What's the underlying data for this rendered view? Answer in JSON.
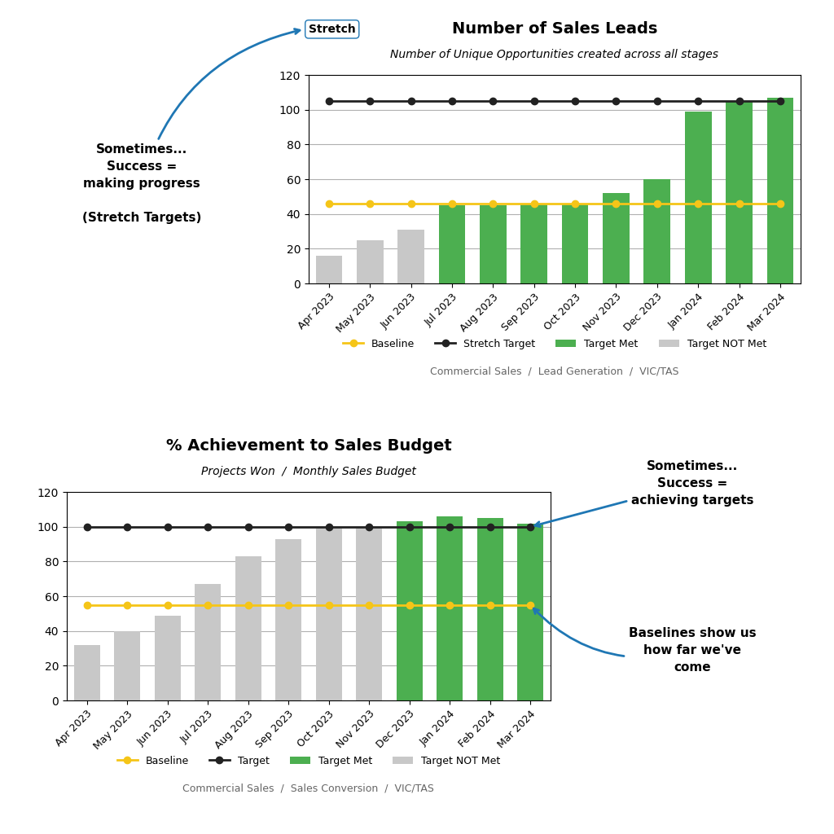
{
  "chart_data": [
    {
      "type": "bar",
      "title": "Number of Sales Leads",
      "subtitle": "Number of Unique Opportunities created across all stages",
      "footer": "Commercial Sales  /  Lead Generation  /  VIC/TAS",
      "badge": "Stretch",
      "annotations": [
        "Sometimes...\nSuccess =\nmaking progress\n\n(Stretch Targets)"
      ],
      "categories": [
        "Apr 2023",
        "May 2023",
        "Jun 2023",
        "Jul 2023",
        "Aug 2023",
        "Sep 2023",
        "Oct 2023",
        "Nov 2023",
        "Dec 2023",
        "Jan 2024",
        "Feb 2024",
        "Mar 2024"
      ],
      "series": [
        {
          "name": "Baseline",
          "type": "line",
          "color": "#f5c518",
          "marker": "o",
          "line_style": "solid",
          "values": [
            46,
            46,
            46,
            46,
            46,
            46,
            46,
            46,
            46,
            46,
            46,
            46
          ]
        },
        {
          "name": "Stretch Target",
          "type": "line",
          "color": "#222222",
          "marker": "o",
          "line_style": "solid",
          "values": [
            105,
            105,
            105,
            105,
            105,
            105,
            105,
            105,
            105,
            105,
            105,
            105
          ]
        },
        {
          "name": "Target Met",
          "type": "bar",
          "color": "#4caf50",
          "values": [
            null,
            null,
            null,
            45,
            45,
            46,
            46,
            52,
            60,
            99,
            105,
            107
          ]
        },
        {
          "name": "Target NOT Met",
          "type": "bar",
          "color": "#c8c8c8",
          "values": [
            16,
            25,
            31,
            null,
            null,
            null,
            null,
            null,
            null,
            null,
            null,
            null
          ]
        }
      ],
      "ylim": [
        0,
        120
      ],
      "yticks": [
        0,
        20,
        40,
        60,
        80,
        100,
        120
      ],
      "grid": true,
      "legend": "upper center"
    },
    {
      "type": "bar",
      "title": "% Achievement to Sales Budget",
      "subtitle": "Projects Won  /  Monthly Sales Budget",
      "footer": "Commercial Sales  /  Sales Conversion  /  VIC/TAS",
      "annotations": [
        "Sometimes...\nSuccess =\nachieving targets",
        "Baselines show us\nhow far we've\ncome"
      ],
      "categories": [
        "Apr 2023",
        "May 2023",
        "Jun 2023",
        "Jul 2023",
        "Aug 2023",
        "Sep 2023",
        "Oct 2023",
        "Nov 2023",
        "Dec 2023",
        "Jan 2024",
        "Feb 2024",
        "Mar 2024"
      ],
      "series": [
        {
          "name": "Baseline",
          "type": "line",
          "color": "#f5c518",
          "marker": "o",
          "line_style": "solid",
          "values": [
            55,
            55,
            55,
            55,
            55,
            55,
            55,
            55,
            55,
            55,
            55,
            55
          ]
        },
        {
          "name": "Target",
          "type": "line",
          "color": "#222222",
          "marker": "o",
          "line_style": "solid",
          "values": [
            100,
            100,
            100,
            100,
            100,
            100,
            100,
            100,
            100,
            100,
            100,
            100
          ]
        },
        {
          "name": "Target Met",
          "type": "bar",
          "color": "#4caf50",
          "values": [
            null,
            null,
            null,
            null,
            null,
            null,
            null,
            null,
            103,
            106,
            105,
            102
          ]
        },
        {
          "name": "Target NOT Met",
          "type": "bar",
          "color": "#c8c8c8",
          "values": [
            32,
            40,
            49,
            67,
            83,
            93,
            99,
            99,
            null,
            null,
            null,
            null
          ]
        }
      ],
      "ylim": [
        0,
        120
      ],
      "yticks": [
        0,
        20,
        40,
        60,
        80,
        100,
        120
      ],
      "grid": true,
      "legend": "upper center"
    }
  ]
}
